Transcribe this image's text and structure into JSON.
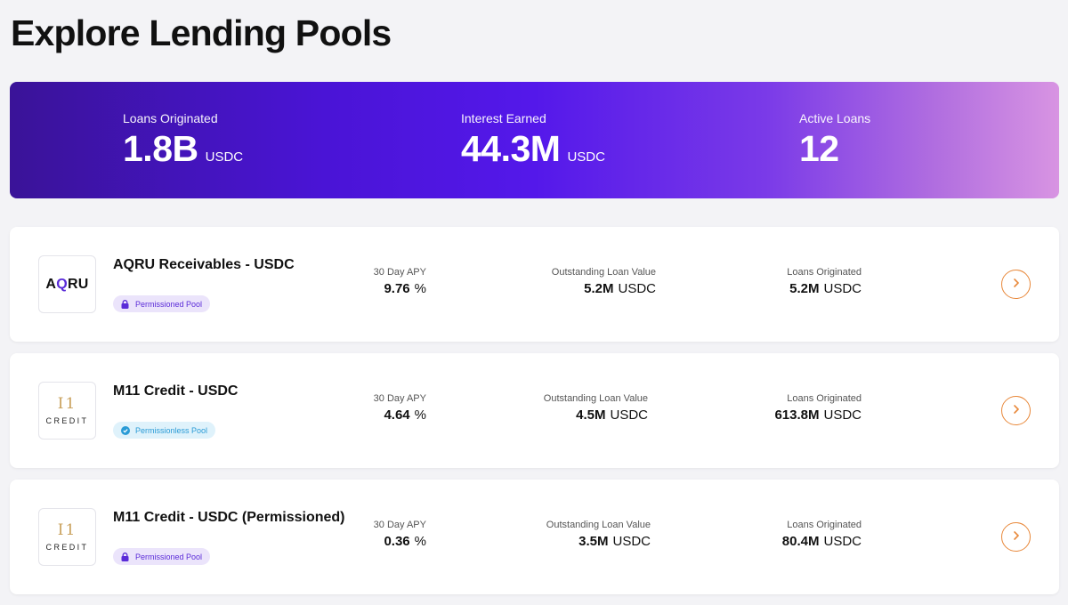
{
  "page": {
    "title": "Explore Lending Pools"
  },
  "stats": {
    "loans_originated": {
      "label": "Loans Originated",
      "value": "1.8B",
      "unit": "USDC"
    },
    "interest_earned": {
      "label": "Interest Earned",
      "value": "44.3M",
      "unit": "USDC"
    },
    "active_loans": {
      "label": "Active Loans",
      "value": "12"
    }
  },
  "colors": {
    "accent": "#e8883a",
    "brand_purple": "#4a14d6",
    "permissioned": "#5a2bd8",
    "permissionless": "#2a9bd6"
  },
  "pools": [
    {
      "name": "AQRU Receivables - USDC",
      "logo": "AQRU",
      "badge": "Permissioned Pool",
      "badge_icon": "lock-icon",
      "apy_label": "30 Day APY",
      "apy_value": "9.76",
      "apy_unit": "%",
      "outstanding_label": "Outstanding Loan Value",
      "outstanding_value": "5.2M",
      "outstanding_unit": "USDC",
      "originated_label": "Loans Originated",
      "originated_value": "5.2M",
      "originated_unit": "USDC"
    },
    {
      "name": "M11 Credit - USDC",
      "logo_text": "CREDIT",
      "badge": "Permissionless Pool",
      "badge_icon": "check-circle-icon",
      "apy_label": "30 Day APY",
      "apy_value": "4.64",
      "apy_unit": "%",
      "outstanding_label": "Outstanding Loan Value",
      "outstanding_value": "4.5M",
      "outstanding_unit": "USDC",
      "originated_label": "Loans Originated",
      "originated_value": "613.8M",
      "originated_unit": "USDC"
    },
    {
      "name": "M11 Credit - USDC (Permissioned)",
      "logo_text": "CREDIT",
      "badge": "Permissioned Pool",
      "badge_icon": "lock-icon",
      "apy_label": "30 Day APY",
      "apy_value": "0.36",
      "apy_unit": "%",
      "outstanding_label": "Outstanding Loan Value",
      "outstanding_value": "3.5M",
      "outstanding_unit": "USDC",
      "originated_label": "Loans Originated",
      "originated_value": "80.4M",
      "originated_unit": "USDC"
    }
  ]
}
